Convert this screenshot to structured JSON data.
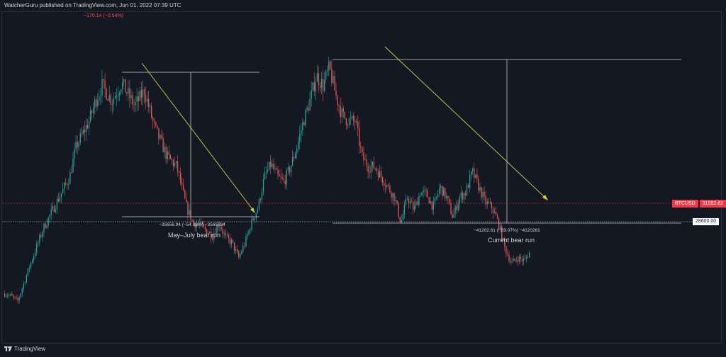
{
  "header": {
    "publisher_line": "WatcherGuru published on TradingView.com, Jun 01, 2022 07:39 UTC",
    "change_readout": "−170.14 (−0.54%)"
  },
  "footer": {
    "brand": "TradingView"
  },
  "price_badges": {
    "symbol": "BTCUSD",
    "last_price": "31592.62",
    "level": "28600.00"
  },
  "annotations": {
    "range1_measure": "−35656.94 (−54.88%) −3565694",
    "range1_label": "May–July bear run",
    "range2_measure": "−41202.61 (−59.07%) −4120261",
    "range2_label": "Current bear run"
  },
  "colors": {
    "background": "#141823",
    "up": "#26a69a",
    "down": "#ef5350",
    "trendline": "#d4cf4a",
    "ruler": "#c8c8c8",
    "price_line": "#f23645"
  },
  "chart_data": {
    "type": "candlestick",
    "symbol": "BTCUSD",
    "price_axis_range": [
      14500,
      80000
    ],
    "last_price": 31592.62,
    "horizontal_levels": [
      28600.0,
      31592.62
    ],
    "path_points": [
      [
        0,
        23000
      ],
      [
        2,
        22500
      ],
      [
        4,
        21500
      ],
      [
        8,
        29000
      ],
      [
        12,
        36000
      ],
      [
        16,
        41000
      ],
      [
        20,
        46000
      ],
      [
        22,
        52000
      ],
      [
        26,
        57000
      ],
      [
        28,
        61000
      ],
      [
        30,
        64000
      ],
      [
        33,
        61000
      ],
      [
        36,
        64500
      ],
      [
        40,
        60000
      ],
      [
        43,
        63000
      ],
      [
        46,
        56000
      ],
      [
        50,
        50000
      ],
      [
        53,
        48000
      ],
      [
        56,
        40000
      ],
      [
        58,
        37000
      ],
      [
        60,
        36500
      ],
      [
        62,
        35500
      ],
      [
        64,
        34500
      ],
      [
        66,
        37000
      ],
      [
        68,
        34000
      ],
      [
        70,
        33000
      ],
      [
        72,
        30000
      ],
      [
        74,
        33000
      ],
      [
        76,
        37000
      ],
      [
        78,
        40000
      ],
      [
        80,
        46000
      ],
      [
        82,
        48500
      ],
      [
        84,
        46000
      ],
      [
        86,
        45000
      ],
      [
        88,
        48000
      ],
      [
        90,
        52000
      ],
      [
        92,
        57000
      ],
      [
        94,
        61000
      ],
      [
        96,
        66000
      ],
      [
        98,
        64000
      ],
      [
        100,
        67500
      ],
      [
        102,
        62000
      ],
      [
        104,
        58000
      ],
      [
        106,
        57000
      ],
      [
        108,
        57000
      ],
      [
        110,
        50000
      ],
      [
        112,
        48000
      ],
      [
        114,
        48000
      ],
      [
        116,
        46000
      ],
      [
        118,
        44000
      ],
      [
        120,
        42000
      ],
      [
        122,
        37000
      ],
      [
        124,
        42000
      ],
      [
        126,
        39500
      ],
      [
        128,
        43000
      ],
      [
        130,
        42500
      ],
      [
        132,
        40000
      ],
      [
        134,
        44000
      ],
      [
        136,
        42000
      ],
      [
        138,
        38000
      ],
      [
        140,
        42000
      ],
      [
        142,
        43000
      ],
      [
        144,
        47000
      ],
      [
        146,
        44000
      ],
      [
        148,
        41000
      ],
      [
        150,
        40000
      ],
      [
        152,
        37000
      ],
      [
        154,
        32000
      ],
      [
        156,
        29000
      ],
      [
        158,
        30000
      ],
      [
        160,
        29500
      ],
      [
        162,
        31500
      ]
    ]
  }
}
